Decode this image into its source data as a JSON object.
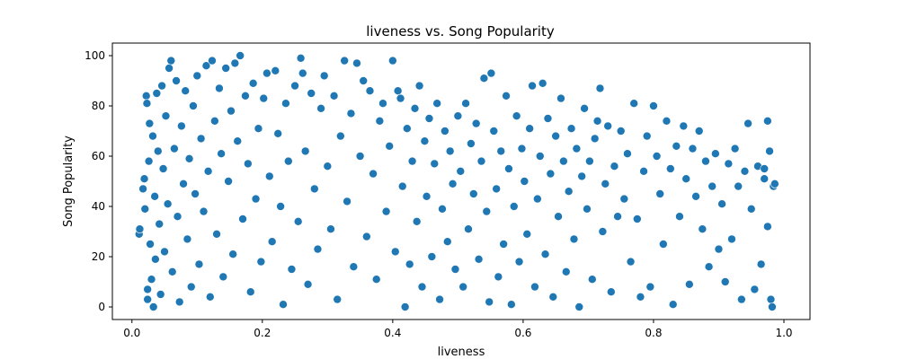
{
  "chart_data": {
    "type": "scatter",
    "title": "liveness vs. Song Popularity",
    "xlabel": "liveness",
    "ylabel": "Song Popularity",
    "xlim": [
      -0.03,
      1.04
    ],
    "ylim": [
      -5,
      105
    ],
    "xticks": [
      0.0,
      0.2,
      0.4,
      0.6,
      0.8,
      1.0
    ],
    "xtick_labels": [
      "0.0",
      "0.2",
      "0.4",
      "0.6",
      "0.8",
      "1.0"
    ],
    "yticks": [
      0,
      20,
      40,
      60,
      80,
      100
    ],
    "ytick_labels": [
      "0",
      "20",
      "40",
      "60",
      "80",
      "100"
    ],
    "grid": false,
    "legend": "none",
    "point_color": "#1f77b4",
    "series": [
      {
        "points": [
          [
            0.011,
            29
          ],
          [
            0.012,
            31
          ],
          [
            0.017,
            47
          ],
          [
            0.019,
            51
          ],
          [
            0.02,
            39
          ],
          [
            0.022,
            84
          ],
          [
            0.023,
            81
          ],
          [
            0.024,
            7
          ],
          [
            0.024,
            3
          ],
          [
            0.026,
            58
          ],
          [
            0.027,
            73
          ],
          [
            0.028,
            25
          ],
          [
            0.03,
            11
          ],
          [
            0.032,
            68
          ],
          [
            0.033,
            0
          ],
          [
            0.035,
            44
          ],
          [
            0.036,
            19
          ],
          [
            0.038,
            85
          ],
          [
            0.04,
            62
          ],
          [
            0.042,
            33
          ],
          [
            0.044,
            5
          ],
          [
            0.046,
            88
          ],
          [
            0.048,
            55
          ],
          [
            0.05,
            22
          ],
          [
            0.052,
            76
          ],
          [
            0.055,
            41
          ],
          [
            0.057,
            95
          ],
          [
            0.06,
            98
          ],
          [
            0.062,
            14
          ],
          [
            0.065,
            63
          ],
          [
            0.068,
            90
          ],
          [
            0.07,
            36
          ],
          [
            0.073,
            2
          ],
          [
            0.076,
            72
          ],
          [
            0.079,
            49
          ],
          [
            0.082,
            86
          ],
          [
            0.085,
            27
          ],
          [
            0.088,
            59
          ],
          [
            0.091,
            8
          ],
          [
            0.094,
            80
          ],
          [
            0.097,
            45
          ],
          [
            0.1,
            92
          ],
          [
            0.103,
            17
          ],
          [
            0.106,
            67
          ],
          [
            0.11,
            38
          ],
          [
            0.114,
            96
          ],
          [
            0.117,
            54
          ],
          [
            0.12,
            4
          ],
          [
            0.123,
            98
          ],
          [
            0.127,
            74
          ],
          [
            0.13,
            29
          ],
          [
            0.134,
            87
          ],
          [
            0.137,
            61
          ],
          [
            0.14,
            12
          ],
          [
            0.144,
            95
          ],
          [
            0.148,
            50
          ],
          [
            0.152,
            78
          ],
          [
            0.155,
            21
          ],
          [
            0.158,
            97
          ],
          [
            0.162,
            66
          ],
          [
            0.166,
            100
          ],
          [
            0.17,
            35
          ],
          [
            0.174,
            84
          ],
          [
            0.178,
            57
          ],
          [
            0.182,
            6
          ],
          [
            0.186,
            89
          ],
          [
            0.19,
            43
          ],
          [
            0.194,
            71
          ],
          [
            0.198,
            18
          ],
          [
            0.202,
            83
          ],
          [
            0.207,
            93
          ],
          [
            0.211,
            52
          ],
          [
            0.215,
            26
          ],
          [
            0.22,
            94
          ],
          [
            0.224,
            69
          ],
          [
            0.228,
            40
          ],
          [
            0.232,
            1
          ],
          [
            0.236,
            81
          ],
          [
            0.24,
            58
          ],
          [
            0.245,
            15
          ],
          [
            0.25,
            88
          ],
          [
            0.255,
            34
          ],
          [
            0.259,
            99
          ],
          [
            0.262,
            93
          ],
          [
            0.266,
            62
          ],
          [
            0.27,
            9
          ],
          [
            0.275,
            85
          ],
          [
            0.28,
            47
          ],
          [
            0.285,
            23
          ],
          [
            0.29,
            79
          ],
          [
            0.295,
            92
          ],
          [
            0.3,
            56
          ],
          [
            0.305,
            31
          ],
          [
            0.31,
            84
          ],
          [
            0.315,
            3
          ],
          [
            0.32,
            68
          ],
          [
            0.326,
            98
          ],
          [
            0.33,
            42
          ],
          [
            0.336,
            77
          ],
          [
            0.34,
            16
          ],
          [
            0.345,
            97
          ],
          [
            0.35,
            60
          ],
          [
            0.355,
            90
          ],
          [
            0.36,
            28
          ],
          [
            0.365,
            86
          ],
          [
            0.37,
            53
          ],
          [
            0.375,
            11
          ],
          [
            0.38,
            74
          ],
          [
            0.385,
            81
          ],
          [
            0.39,
            38
          ],
          [
            0.395,
            64
          ],
          [
            0.4,
            98
          ],
          [
            0.404,
            22
          ],
          [
            0.408,
            86
          ],
          [
            0.412,
            83
          ],
          [
            0.415,
            48
          ],
          [
            0.419,
            0
          ],
          [
            0.422,
            71
          ],
          [
            0.426,
            17
          ],
          [
            0.43,
            58
          ],
          [
            0.434,
            79
          ],
          [
            0.437,
            34
          ],
          [
            0.441,
            88
          ],
          [
            0.445,
            8
          ],
          [
            0.449,
            66
          ],
          [
            0.452,
            44
          ],
          [
            0.456,
            75
          ],
          [
            0.46,
            20
          ],
          [
            0.464,
            57
          ],
          [
            0.468,
            81
          ],
          [
            0.472,
            3
          ],
          [
            0.476,
            39
          ],
          [
            0.48,
            70
          ],
          [
            0.484,
            26
          ],
          [
            0.488,
            62
          ],
          [
            0.492,
            49
          ],
          [
            0.496,
            15
          ],
          [
            0.5,
            76
          ],
          [
            0.504,
            54
          ],
          [
            0.508,
            8
          ],
          [
            0.512,
            81
          ],
          [
            0.516,
            31
          ],
          [
            0.52,
            65
          ],
          [
            0.524,
            45
          ],
          [
            0.528,
            73
          ],
          [
            0.532,
            19
          ],
          [
            0.536,
            58
          ],
          [
            0.54,
            91
          ],
          [
            0.544,
            38
          ],
          [
            0.548,
            2
          ],
          [
            0.551,
            93
          ],
          [
            0.555,
            70
          ],
          [
            0.559,
            47
          ],
          [
            0.562,
            12
          ],
          [
            0.566,
            62
          ],
          [
            0.57,
            25
          ],
          [
            0.574,
            84
          ],
          [
            0.578,
            55
          ],
          [
            0.582,
            1
          ],
          [
            0.586,
            40
          ],
          [
            0.59,
            76
          ],
          [
            0.594,
            18
          ],
          [
            0.598,
            63
          ],
          [
            0.602,
            50
          ],
          [
            0.606,
            29
          ],
          [
            0.61,
            71
          ],
          [
            0.614,
            88
          ],
          [
            0.618,
            8
          ],
          [
            0.622,
            43
          ],
          [
            0.626,
            60
          ],
          [
            0.63,
            89
          ],
          [
            0.634,
            21
          ],
          [
            0.638,
            75
          ],
          [
            0.642,
            53
          ],
          [
            0.646,
            4
          ],
          [
            0.65,
            68
          ],
          [
            0.654,
            36
          ],
          [
            0.658,
            83
          ],
          [
            0.662,
            58
          ],
          [
            0.666,
            14
          ],
          [
            0.67,
            46
          ],
          [
            0.674,
            71
          ],
          [
            0.678,
            27
          ],
          [
            0.682,
            63
          ],
          [
            0.686,
            0
          ],
          [
            0.69,
            52
          ],
          [
            0.694,
            79
          ],
          [
            0.698,
            39
          ],
          [
            0.702,
            58
          ],
          [
            0.706,
            11
          ],
          [
            0.71,
            67
          ],
          [
            0.714,
            74
          ],
          [
            0.718,
            87
          ],
          [
            0.722,
            30
          ],
          [
            0.726,
            49
          ],
          [
            0.73,
            72
          ],
          [
            0.735,
            6
          ],
          [
            0.74,
            56
          ],
          [
            0.745,
            36
          ],
          [
            0.75,
            70
          ],
          [
            0.755,
            43
          ],
          [
            0.76,
            61
          ],
          [
            0.765,
            18
          ],
          [
            0.77,
            81
          ],
          [
            0.775,
            35
          ],
          [
            0.78,
            4
          ],
          [
            0.785,
            54
          ],
          [
            0.79,
            68
          ],
          [
            0.795,
            8
          ],
          [
            0.8,
            80
          ],
          [
            0.805,
            60
          ],
          [
            0.81,
            45
          ],
          [
            0.815,
            25
          ],
          [
            0.82,
            74
          ],
          [
            0.826,
            55
          ],
          [
            0.83,
            1
          ],
          [
            0.835,
            64
          ],
          [
            0.84,
            36
          ],
          [
            0.846,
            72
          ],
          [
            0.85,
            51
          ],
          [
            0.855,
            9
          ],
          [
            0.86,
            63
          ],
          [
            0.865,
            44
          ],
          [
            0.87,
            70
          ],
          [
            0.875,
            31
          ],
          [
            0.88,
            58
          ],
          [
            0.885,
            16
          ],
          [
            0.89,
            48
          ],
          [
            0.895,
            61
          ],
          [
            0.9,
            23
          ],
          [
            0.905,
            41
          ],
          [
            0.91,
            10
          ],
          [
            0.915,
            57
          ],
          [
            0.92,
            27
          ],
          [
            0.925,
            63
          ],
          [
            0.93,
            48
          ],
          [
            0.935,
            3
          ],
          [
            0.94,
            54
          ],
          [
            0.945,
            73
          ],
          [
            0.95,
            39
          ],
          [
            0.955,
            7
          ],
          [
            0.96,
            56
          ],
          [
            0.965,
            17
          ],
          [
            0.97,
            51
          ],
          [
            0.975,
            74
          ],
          [
            0.978,
            62
          ],
          [
            0.98,
            3
          ],
          [
            0.982,
            0
          ],
          [
            0.984,
            48
          ],
          [
            0.986,
            49
          ],
          [
            0.975,
            32
          ],
          [
            0.97,
            55
          ]
        ]
      }
    ]
  }
}
